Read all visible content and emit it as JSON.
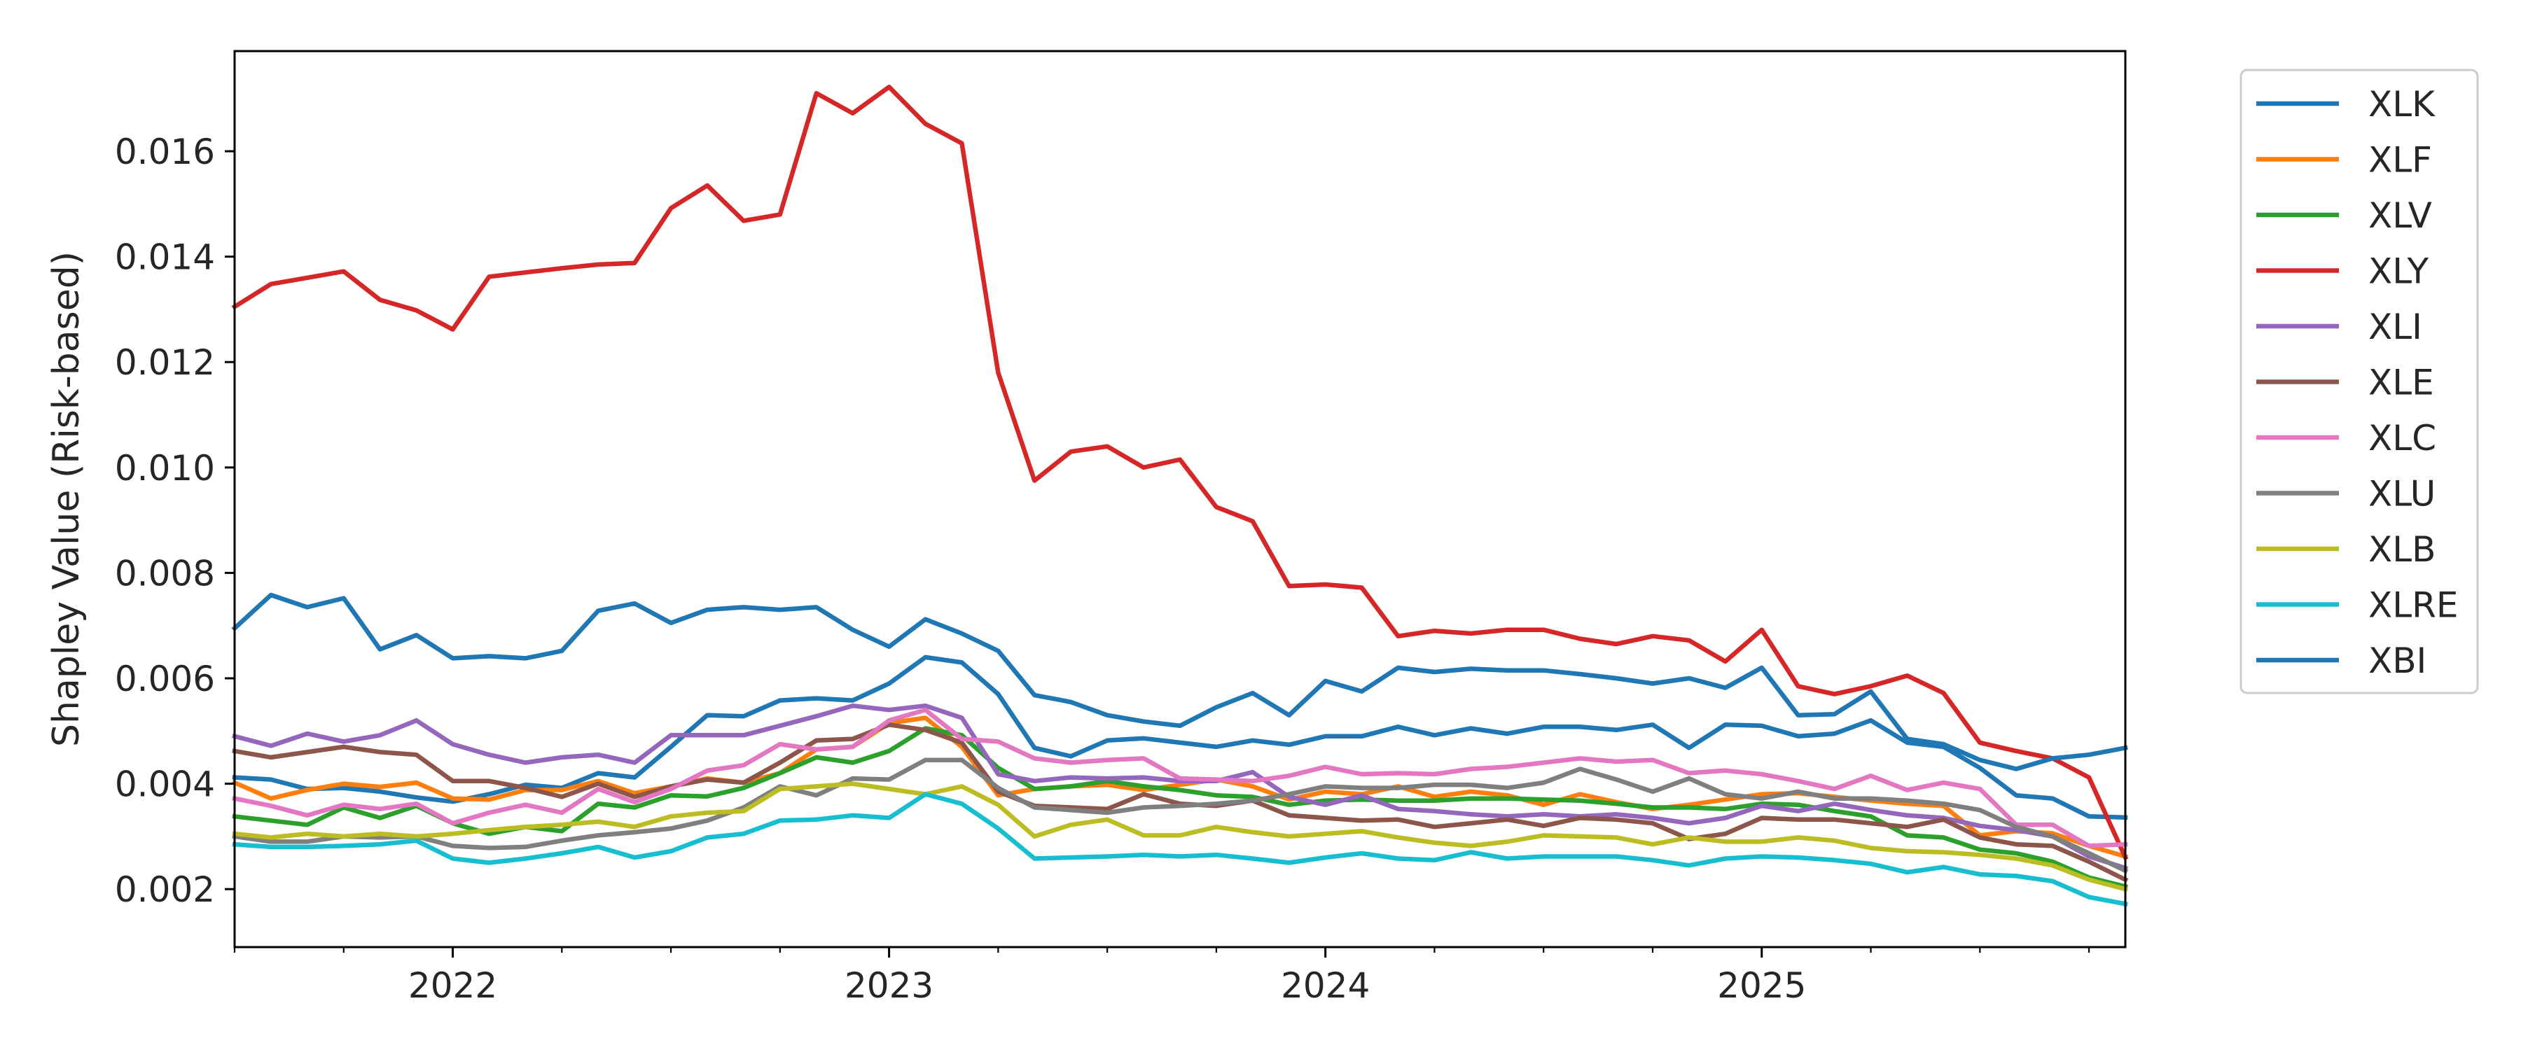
{
  "chart_data": {
    "type": "line",
    "title": "",
    "xlabel": "",
    "ylabel": "Shapley Value (Risk-based)",
    "grid": false,
    "legend_position": "outside-right",
    "xlim": [
      "2021-07",
      "2025-11"
    ],
    "ylim": [
      0.0009,
      0.0179
    ],
    "yticks": [
      0.002,
      0.004,
      0.006,
      0.008,
      0.01,
      0.012,
      0.014,
      0.016
    ],
    "ytick_labels": [
      "0.002",
      "0.004",
      "0.006",
      "0.008",
      "0.010",
      "0.012",
      "0.014",
      "0.016"
    ],
    "xticks": [
      "2022-01",
      "2023-01",
      "2024-01",
      "2025-01"
    ],
    "xtick_labels": [
      "2022",
      "2023",
      "2024",
      "2025"
    ],
    "x": [
      "2021-07",
      "2021-08",
      "2021-09",
      "2021-10",
      "2021-11",
      "2021-12",
      "2022-01",
      "2022-02",
      "2022-03",
      "2022-04",
      "2022-05",
      "2022-06",
      "2022-07",
      "2022-08",
      "2022-09",
      "2022-10",
      "2022-11",
      "2022-12",
      "2023-01",
      "2023-02",
      "2023-03",
      "2023-04",
      "2023-05",
      "2023-06",
      "2023-07",
      "2023-08",
      "2023-09",
      "2023-10",
      "2023-11",
      "2023-12",
      "2024-01",
      "2024-02",
      "2024-03",
      "2024-04",
      "2024-05",
      "2024-06",
      "2024-07",
      "2024-08",
      "2024-09",
      "2024-10",
      "2024-11",
      "2024-12",
      "2025-01",
      "2025-02",
      "2025-03",
      "2025-04",
      "2025-05",
      "2025-06",
      "2025-07",
      "2025-08",
      "2025-09",
      "2025-10",
      "2025-11"
    ],
    "series": [
      {
        "name": "XLK",
        "color": "#1f77b4",
        "values": [
          0.00412,
          0.00408,
          0.0039,
          0.00392,
          0.00385,
          0.00374,
          0.00366,
          0.0038,
          0.00398,
          0.00392,
          0.0042,
          0.00412,
          0.0047,
          0.0053,
          0.00528,
          0.00558,
          0.00562,
          0.00558,
          0.0059,
          0.0064,
          0.0063,
          0.0057,
          0.00468,
          0.00452,
          0.00482,
          0.00486,
          0.00478,
          0.0047,
          0.00482,
          0.00474,
          0.0049,
          0.0049,
          0.00508,
          0.00492,
          0.00505,
          0.00495,
          0.00508,
          0.00508,
          0.00502,
          0.00512,
          0.00468,
          0.00512,
          0.0051,
          0.0049,
          0.00495,
          0.0052,
          0.00478,
          0.0047,
          0.0043,
          0.00378,
          0.00372,
          0.00338,
          0.00336
        ]
      },
      {
        "name": "XLF",
        "color": "#ff7f0e",
        "values": [
          0.00402,
          0.00372,
          0.00388,
          0.004,
          0.00394,
          0.00402,
          0.00372,
          0.0037,
          0.00388,
          0.00388,
          0.00405,
          0.00382,
          0.00395,
          0.0041,
          0.00402,
          0.0042,
          0.00465,
          0.0047,
          0.00515,
          0.00525,
          0.0047,
          0.00378,
          0.0039,
          0.00395,
          0.00398,
          0.00388,
          0.00398,
          0.00408,
          0.00395,
          0.0037,
          0.00385,
          0.0038,
          0.00395,
          0.00375,
          0.00385,
          0.00378,
          0.0036,
          0.0038,
          0.00365,
          0.00352,
          0.0036,
          0.0037,
          0.0038,
          0.00382,
          0.00375,
          0.00368,
          0.00362,
          0.00358,
          0.00302,
          0.0031,
          0.00306,
          0.00282,
          0.00262
        ]
      },
      {
        "name": "XLV",
        "color": "#2ca02c",
        "values": [
          0.00338,
          0.0033,
          0.00322,
          0.00355,
          0.00335,
          0.00358,
          0.00325,
          0.00305,
          0.00318,
          0.0031,
          0.00362,
          0.00355,
          0.00378,
          0.00376,
          0.00392,
          0.0042,
          0.0045,
          0.0044,
          0.00462,
          0.00505,
          0.00492,
          0.0043,
          0.0039,
          0.00395,
          0.00405,
          0.00395,
          0.00388,
          0.00378,
          0.00375,
          0.0036,
          0.00368,
          0.0037,
          0.00368,
          0.00368,
          0.00372,
          0.00372,
          0.0037,
          0.00368,
          0.00362,
          0.00355,
          0.00355,
          0.00352,
          0.00362,
          0.0036,
          0.00348,
          0.00338,
          0.00302,
          0.00298,
          0.00275,
          0.00268,
          0.00252,
          0.00222,
          0.00205
        ]
      },
      {
        "name": "XLY",
        "color": "#d62728",
        "values": [
          0.01305,
          0.01348,
          0.0136,
          0.01372,
          0.01318,
          0.01298,
          0.01262,
          0.01362,
          0.0137,
          0.01378,
          0.01385,
          0.01388,
          0.01492,
          0.01535,
          0.01468,
          0.0148,
          0.0171,
          0.01672,
          0.01722,
          0.01652,
          0.01615,
          0.0118,
          0.00975,
          0.0103,
          0.0104,
          0.01,
          0.01015,
          0.00925,
          0.00898,
          0.00775,
          0.00778,
          0.00772,
          0.0068,
          0.0069,
          0.00685,
          0.00692,
          0.00692,
          0.00675,
          0.00665,
          0.0068,
          0.00672,
          0.00632,
          0.00692,
          0.00585,
          0.0057,
          0.00585,
          0.00605,
          0.00572,
          0.00478,
          0.00462,
          0.00448,
          0.00412,
          0.0026
        ]
      },
      {
        "name": "XLI",
        "color": "#9467bd",
        "values": [
          0.0049,
          0.00472,
          0.00495,
          0.0048,
          0.00492,
          0.0052,
          0.00475,
          0.00455,
          0.0044,
          0.0045,
          0.00455,
          0.0044,
          0.00492,
          0.00492,
          0.00492,
          0.0051,
          0.00528,
          0.00548,
          0.0054,
          0.00548,
          0.00525,
          0.00418,
          0.00405,
          0.00412,
          0.0041,
          0.00412,
          0.00405,
          0.00405,
          0.00422,
          0.00375,
          0.0036,
          0.00378,
          0.00352,
          0.00348,
          0.00342,
          0.00338,
          0.00342,
          0.00338,
          0.00342,
          0.00335,
          0.00325,
          0.00335,
          0.00358,
          0.00348,
          0.00362,
          0.0035,
          0.0034,
          0.00335,
          0.0032,
          0.00312,
          0.003,
          0.00262,
          0.0024
        ]
      },
      {
        "name": "XLE",
        "color": "#8c564b",
        "values": [
          0.00462,
          0.0045,
          0.0046,
          0.0047,
          0.0046,
          0.00455,
          0.00405,
          0.00405,
          0.00392,
          0.00375,
          0.004,
          0.00375,
          0.00395,
          0.00408,
          0.00402,
          0.0044,
          0.00482,
          0.00485,
          0.00512,
          0.00502,
          0.00478,
          0.00385,
          0.00358,
          0.00355,
          0.00352,
          0.0038,
          0.00362,
          0.00358,
          0.00368,
          0.0034,
          0.00335,
          0.0033,
          0.00332,
          0.00318,
          0.00325,
          0.00332,
          0.0032,
          0.00335,
          0.00332,
          0.00325,
          0.00295,
          0.00305,
          0.00335,
          0.00332,
          0.00332,
          0.00325,
          0.00318,
          0.00332,
          0.00298,
          0.00285,
          0.00282,
          0.00252,
          0.00218
        ]
      },
      {
        "name": "XLC",
        "color": "#e377c2",
        "values": [
          0.00372,
          0.00358,
          0.0034,
          0.0036,
          0.00352,
          0.00362,
          0.00325,
          0.00345,
          0.0036,
          0.00345,
          0.0039,
          0.00365,
          0.0039,
          0.00425,
          0.00435,
          0.00475,
          0.00465,
          0.0047,
          0.0052,
          0.0054,
          0.00485,
          0.0048,
          0.00448,
          0.0044,
          0.00445,
          0.00448,
          0.0041,
          0.00408,
          0.00405,
          0.00415,
          0.00432,
          0.00418,
          0.0042,
          0.00418,
          0.00428,
          0.00432,
          0.0044,
          0.00448,
          0.00442,
          0.00445,
          0.0042,
          0.00425,
          0.00418,
          0.00405,
          0.0039,
          0.00415,
          0.00388,
          0.00402,
          0.0039,
          0.00322,
          0.00322,
          0.00282,
          0.00285
        ]
      },
      {
        "name": "XLU",
        "color": "#7f7f7f",
        "values": [
          0.003,
          0.0029,
          0.0029,
          0.003,
          0.00298,
          0.003,
          0.00282,
          0.00278,
          0.0028,
          0.00292,
          0.00302,
          0.00308,
          0.00315,
          0.0033,
          0.00355,
          0.00395,
          0.00378,
          0.0041,
          0.00408,
          0.00445,
          0.00445,
          0.00392,
          0.00355,
          0.0035,
          0.00345,
          0.00355,
          0.00358,
          0.00362,
          0.00368,
          0.0038,
          0.00395,
          0.00392,
          0.00392,
          0.00398,
          0.00398,
          0.00392,
          0.00402,
          0.00428,
          0.00408,
          0.00385,
          0.0041,
          0.0038,
          0.00372,
          0.00385,
          0.00372,
          0.00372,
          0.00368,
          0.00362,
          0.0035,
          0.00318,
          0.003,
          0.00268,
          0.00235
        ]
      },
      {
        "name": "XLB",
        "color": "#bcbd22",
        "values": [
          0.00305,
          0.00298,
          0.00305,
          0.003,
          0.00305,
          0.003,
          0.00305,
          0.00312,
          0.00318,
          0.00322,
          0.00328,
          0.00318,
          0.00338,
          0.00345,
          0.00348,
          0.0039,
          0.00395,
          0.004,
          0.0039,
          0.0038,
          0.00395,
          0.0036,
          0.003,
          0.00322,
          0.00332,
          0.00302,
          0.00302,
          0.00318,
          0.00308,
          0.003,
          0.00305,
          0.0031,
          0.00298,
          0.00288,
          0.00282,
          0.0029,
          0.00302,
          0.003,
          0.00298,
          0.00285,
          0.00298,
          0.0029,
          0.0029,
          0.00298,
          0.00292,
          0.00278,
          0.00272,
          0.0027,
          0.00265,
          0.00258,
          0.00245,
          0.00218,
          0.002
        ]
      },
      {
        "name": "XLRE",
        "color": "#17becf",
        "values": [
          0.00285,
          0.0028,
          0.0028,
          0.00282,
          0.00285,
          0.00292,
          0.00258,
          0.0025,
          0.00258,
          0.00268,
          0.0028,
          0.0026,
          0.00272,
          0.00298,
          0.00305,
          0.0033,
          0.00332,
          0.0034,
          0.00335,
          0.0038,
          0.00362,
          0.00315,
          0.00258,
          0.0026,
          0.00262,
          0.00265,
          0.00262,
          0.00265,
          0.00258,
          0.0025,
          0.0026,
          0.00268,
          0.00258,
          0.00255,
          0.0027,
          0.00258,
          0.00262,
          0.00262,
          0.00262,
          0.00255,
          0.00245,
          0.00258,
          0.00262,
          0.0026,
          0.00255,
          0.00248,
          0.00232,
          0.00242,
          0.00228,
          0.00225,
          0.00215,
          0.00185,
          0.00172
        ]
      },
      {
        "name": "XBI",
        "color": "#1f77b4",
        "values": [
          0.00695,
          0.00758,
          0.00735,
          0.00752,
          0.00655,
          0.00682,
          0.00638,
          0.00642,
          0.00638,
          0.00652,
          0.00728,
          0.00742,
          0.00705,
          0.0073,
          0.00735,
          0.0073,
          0.00735,
          0.00692,
          0.0066,
          0.00712,
          0.00685,
          0.00652,
          0.00568,
          0.00555,
          0.0053,
          0.00518,
          0.0051,
          0.00545,
          0.00572,
          0.0053,
          0.00595,
          0.00575,
          0.0062,
          0.00612,
          0.00618,
          0.00615,
          0.00615,
          0.00608,
          0.006,
          0.0059,
          0.006,
          0.00582,
          0.0062,
          0.0053,
          0.00532,
          0.00575,
          0.00485,
          0.00475,
          0.00445,
          0.00428,
          0.00448,
          0.00455,
          0.00468
        ]
      }
    ]
  }
}
